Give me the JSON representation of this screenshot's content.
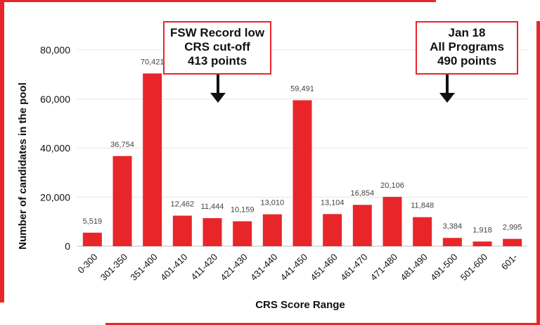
{
  "chart_data": {
    "type": "bar",
    "title": "",
    "xlabel": "CRS Score Range",
    "ylabel": "Number of candidates in the pool",
    "ylim": [
      0,
      80000
    ],
    "yticks": [
      0,
      20000,
      40000,
      60000,
      80000
    ],
    "ytick_labels": [
      "0",
      "20,000",
      "40,000",
      "60,000",
      "80,000"
    ],
    "grid": true,
    "bar_color": "#e8262a",
    "categories": [
      "0-300",
      "301-350",
      "351-400",
      "401-410",
      "411-420",
      "421-430",
      "431-440",
      "441-450",
      "451-460",
      "461-470",
      "471-480",
      "481-490",
      "491-500",
      "501-600",
      "601-"
    ],
    "values": [
      5519,
      36754,
      70421,
      12462,
      11444,
      10159,
      13010,
      59491,
      13104,
      16854,
      20106,
      11848,
      3384,
      1918,
      2995
    ],
    "data_labels": [
      "5,519",
      "36,754",
      "70,421",
      "12,462",
      "11,444",
      "10,159",
      "13,010",
      "59,491",
      "13,104",
      "16,854",
      "20,106",
      "11,848",
      "3,384",
      "1,918",
      "2,995"
    ]
  },
  "annotations": [
    {
      "lines": [
        "FSW Record low",
        "CRS cut-off",
        "413 points"
      ]
    },
    {
      "lines": [
        "Jan 18",
        "All Programs",
        "490 points"
      ]
    }
  ],
  "colors": {
    "accent": "#e8262a",
    "grid": "#e6e6e6",
    "text": "#111111"
  }
}
